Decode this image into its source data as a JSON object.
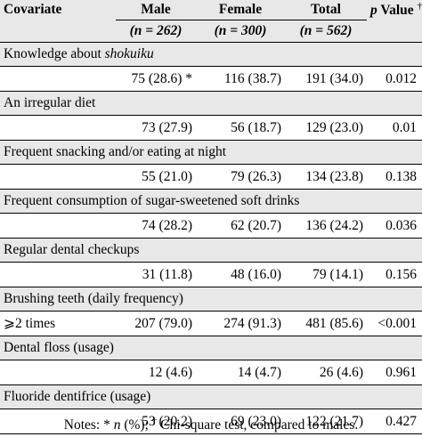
{
  "headers": {
    "covariate": "Covariate",
    "male": "Male",
    "female": "Female",
    "total": "Total",
    "p_prefix": "p",
    "p_suffix": " Value",
    "p_mark": "†",
    "male_n": "(n = 262)",
    "female_n": "(n = 300)",
    "total_n": "(n = 562)"
  },
  "rows": [
    {
      "label_main": "Knowledge about ",
      "label_italic": "shokuiku",
      "male": "75 (28.6) *",
      "female": "116 (38.7)",
      "total": "191 (34.0)",
      "p": "0.012"
    },
    {
      "label_main": "An irregular diet",
      "label_italic": "",
      "male": "73 (27.9)",
      "female": "56 (18.7)",
      "total": "129 (23.0)",
      "p": "0.01"
    },
    {
      "label_main": "Frequent snacking and/or eating at night",
      "label_italic": "",
      "male": "55 (21.0)",
      "female": "79 (26.3)",
      "total": "134 (23.8)",
      "p": "0.138"
    },
    {
      "label_main": "Frequent consumption of sugar-sweetened soft drinks",
      "label_italic": "",
      "male": "74 (28.2)",
      "female": "62 (20.7)",
      "total": "136 (24.2)",
      "p": "0.036"
    },
    {
      "label_main": "Regular dental checkups",
      "label_italic": "",
      "male": "31 (11.8)",
      "female": "48 (16.0)",
      "total": "79 (14.1)",
      "p": "0.156"
    },
    {
      "label_main": "Brushing teeth (daily frequency)",
      "label_italic": "",
      "sublabel": "⩾2 times",
      "male": "207 (79.0)",
      "female": "274 (91.3)",
      "total": "481 (85.6)",
      "p": "<0.001"
    },
    {
      "label_main": "Dental floss (usage)",
      "label_italic": "",
      "male": "12 (4.6)",
      "female": "14 (4.7)",
      "total": "26 (4.6)",
      "p": "0.961"
    },
    {
      "label_main": "Fluoride dentifrice (usage)",
      "label_italic": "",
      "male": "53 (20.2)",
      "female": "69 (23.0)",
      "total": "122 (21.7)",
      "p": "0.427"
    }
  ],
  "notes": {
    "prefix": "Notes: * ",
    "n_italic": "n",
    "mid": " (%); ",
    "dagger": "†",
    "suffix": " Chi-square test, compared to males."
  }
}
